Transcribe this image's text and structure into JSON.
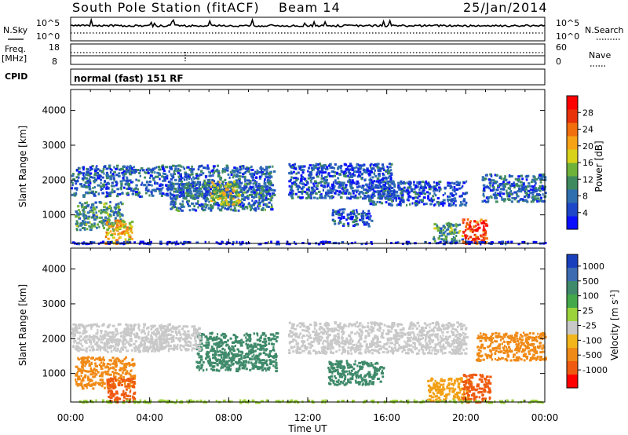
{
  "header": {
    "title": "South Pole Station (fitACF)",
    "beam": "Beam 14",
    "date": "25/Jan/2014"
  },
  "strips": {
    "nsky_label": "N.Sky",
    "nsearch_label": "N.Search",
    "noise_ticks": [
      "10^5",
      "10^0"
    ],
    "freq_label_1": "Freq.",
    "freq_label_2": "[MHz]",
    "freq_ticks": [
      "18",
      "8"
    ],
    "nave_label": "Nave",
    "nave_ticks": [
      "60",
      "0"
    ],
    "cpid_label": "CPID",
    "cpid_text": "normal (fast) 151 RF"
  },
  "chart_data": [
    {
      "type": "heatmap",
      "panel": "power",
      "ylabel": "Slant Range [km]",
      "xlabel": "",
      "x_range": [
        "00:00",
        "00:00"
      ],
      "x_ticks": [
        "00:00",
        "04:00",
        "08:00",
        "12:00",
        "16:00",
        "20:00",
        "00:00"
      ],
      "y_ticks": [
        1000,
        2000,
        3000,
        4000
      ],
      "ylim": [
        180,
        4600
      ],
      "colorbar_label": "Power [dB]",
      "colorbar_ticks": [
        4,
        8,
        12,
        16,
        20,
        24,
        28
      ],
      "colorbar_colors": [
        "#0a10ff",
        "#1d47c8",
        "#2f6fb0",
        "#3e8a5e",
        "#6fb23a",
        "#d8d21a",
        "#f6a316",
        "#f26f0e",
        "#e8320a",
        "#ff0000"
      ],
      "scatter_regions": [
        {
          "t0": 0.0,
          "t1": 10.3,
          "r0": 1550,
          "r1": 2450,
          "level": 0.22
        },
        {
          "t0": 0.2,
          "t1": 2.6,
          "r0": 600,
          "r1": 1400,
          "level": 0.35
        },
        {
          "t0": 1.7,
          "t1": 3.1,
          "r0": 200,
          "r1": 900,
          "level": 0.6
        },
        {
          "t0": 5.0,
          "t1": 10.2,
          "r0": 1150,
          "r1": 1950,
          "level": 0.25
        },
        {
          "t0": 7.0,
          "t1": 8.5,
          "r0": 1300,
          "r1": 2000,
          "level": 0.5
        },
        {
          "t0": 11.0,
          "t1": 16.2,
          "r0": 1500,
          "r1": 2500,
          "level": 0.18
        },
        {
          "t0": 13.2,
          "t1": 15.2,
          "r0": 700,
          "r1": 1200,
          "level": 0.2
        },
        {
          "t0": 15.0,
          "t1": 20.0,
          "r0": 1300,
          "r1": 2000,
          "level": 0.18
        },
        {
          "t0": 18.3,
          "t1": 19.8,
          "r0": 250,
          "r1": 800,
          "level": 0.35
        },
        {
          "t0": 19.8,
          "t1": 21.0,
          "r0": 200,
          "r1": 900,
          "level": 0.85
        },
        {
          "t0": 20.8,
          "t1": 24.0,
          "r0": 1400,
          "r1": 2200,
          "level": 0.22
        },
        {
          "t0": 0.0,
          "t1": 24.0,
          "r0": 190,
          "r1": 260,
          "level": 0.05
        }
      ]
    },
    {
      "type": "heatmap",
      "panel": "velocity",
      "ylabel": "Slant Range [km]",
      "xlabel": "Time UT",
      "x_ticks": [
        "00:00",
        "04:00",
        "08:00",
        "12:00",
        "16:00",
        "20:00",
        "00:00"
      ],
      "y_ticks": [
        1000,
        2000,
        3000,
        4000
      ],
      "ylim": [
        180,
        4600
      ],
      "colorbar_label": "Velocity [m s^-1]",
      "colorbar_ticks": [
        "1000",
        "500",
        "100",
        "25",
        "-25",
        "-100",
        "-500",
        "-1000"
      ],
      "colorbar_colors": [
        "#1a3fbd",
        "#3d6bb2",
        "#3f8a6a",
        "#43a84a",
        "#9ad43a",
        "#c8c8c8",
        "#f2b61a",
        "#f08a16",
        "#ef5a10",
        "#ff0000"
      ],
      "scatter_regions": [
        {
          "t0": 0.0,
          "t1": 5.0,
          "r0": 1650,
          "r1": 2450,
          "color": "#c9c9c9"
        },
        {
          "t0": 0.2,
          "t1": 3.2,
          "r0": 600,
          "r1": 1500,
          "color": "#f08a16"
        },
        {
          "t0": 1.8,
          "t1": 3.2,
          "r0": 200,
          "r1": 900,
          "color": "#ef5a10"
        },
        {
          "t0": 6.3,
          "t1": 10.4,
          "r0": 1100,
          "r1": 2200,
          "color": "#3f8a6a"
        },
        {
          "t0": 4.0,
          "t1": 6.5,
          "r0": 1700,
          "r1": 2400,
          "color": "#c9c9c9"
        },
        {
          "t0": 11.0,
          "t1": 20.0,
          "r0": 1600,
          "r1": 2500,
          "color": "#c9c9c9"
        },
        {
          "t0": 13.0,
          "t1": 15.8,
          "r0": 700,
          "r1": 1400,
          "color": "#3f8a6a"
        },
        {
          "t0": 18.0,
          "t1": 20.2,
          "r0": 250,
          "r1": 900,
          "color": "#f2a016"
        },
        {
          "t0": 19.8,
          "t1": 21.2,
          "r0": 200,
          "r1": 1000,
          "color": "#ef5a10"
        },
        {
          "t0": 20.5,
          "t1": 24.0,
          "r0": 1400,
          "r1": 2200,
          "color": "#f08a16"
        },
        {
          "t0": 0.0,
          "t1": 24.0,
          "r0": 190,
          "r1": 260,
          "color": "#9ad43a"
        }
      ]
    }
  ]
}
